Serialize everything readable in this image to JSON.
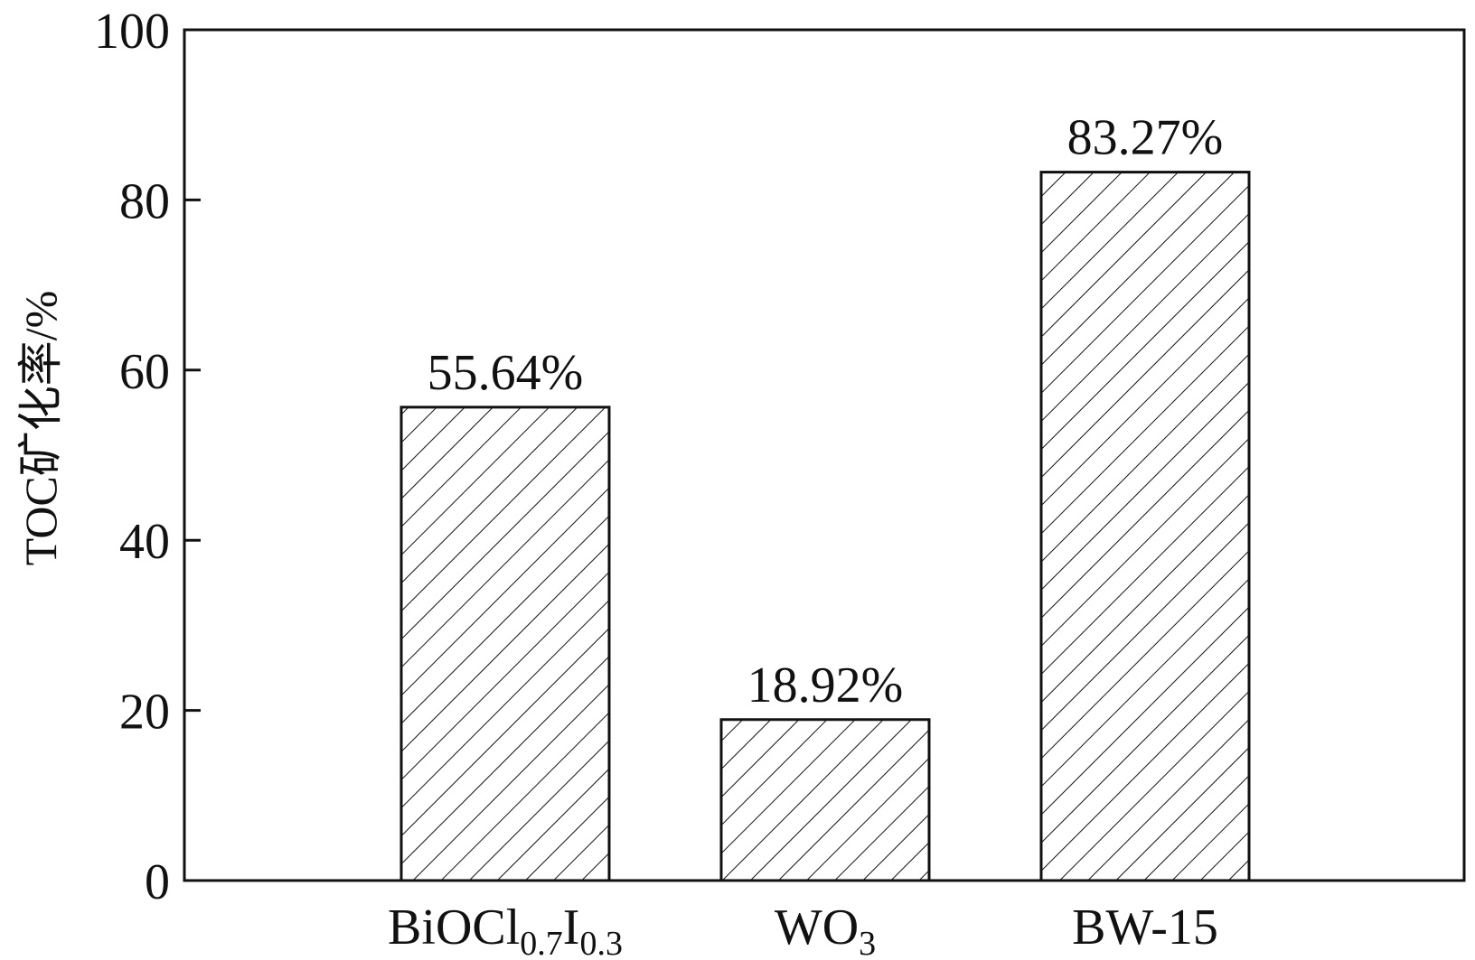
{
  "chart_data": {
    "type": "bar",
    "title": "",
    "xlabel": "",
    "ylabel": "TOC矿化率/%",
    "ylim": [
      0,
      100
    ],
    "yticks": [
      0,
      20,
      40,
      60,
      80,
      100
    ],
    "grid": false,
    "bar_style": "white fill with diagonal hatch, black outline",
    "colors": {
      "axis": "#111111",
      "bar_fill": "#ffffff",
      "bar_stroke": "#111111",
      "hatch": "#111111"
    },
    "categories": [
      {
        "base": "BiOCl",
        "sub1": "0.7",
        "mid": "I",
        "sub2": "0.3"
      },
      {
        "base": "WO",
        "sub1": "3",
        "mid": "",
        "sub2": ""
      },
      {
        "base": "BW-15",
        "sub1": "",
        "mid": "",
        "sub2": ""
      }
    ],
    "values": [
      55.64,
      18.92,
      83.27
    ],
    "data_labels": [
      "55.64%",
      "18.92%",
      "83.27%"
    ]
  }
}
